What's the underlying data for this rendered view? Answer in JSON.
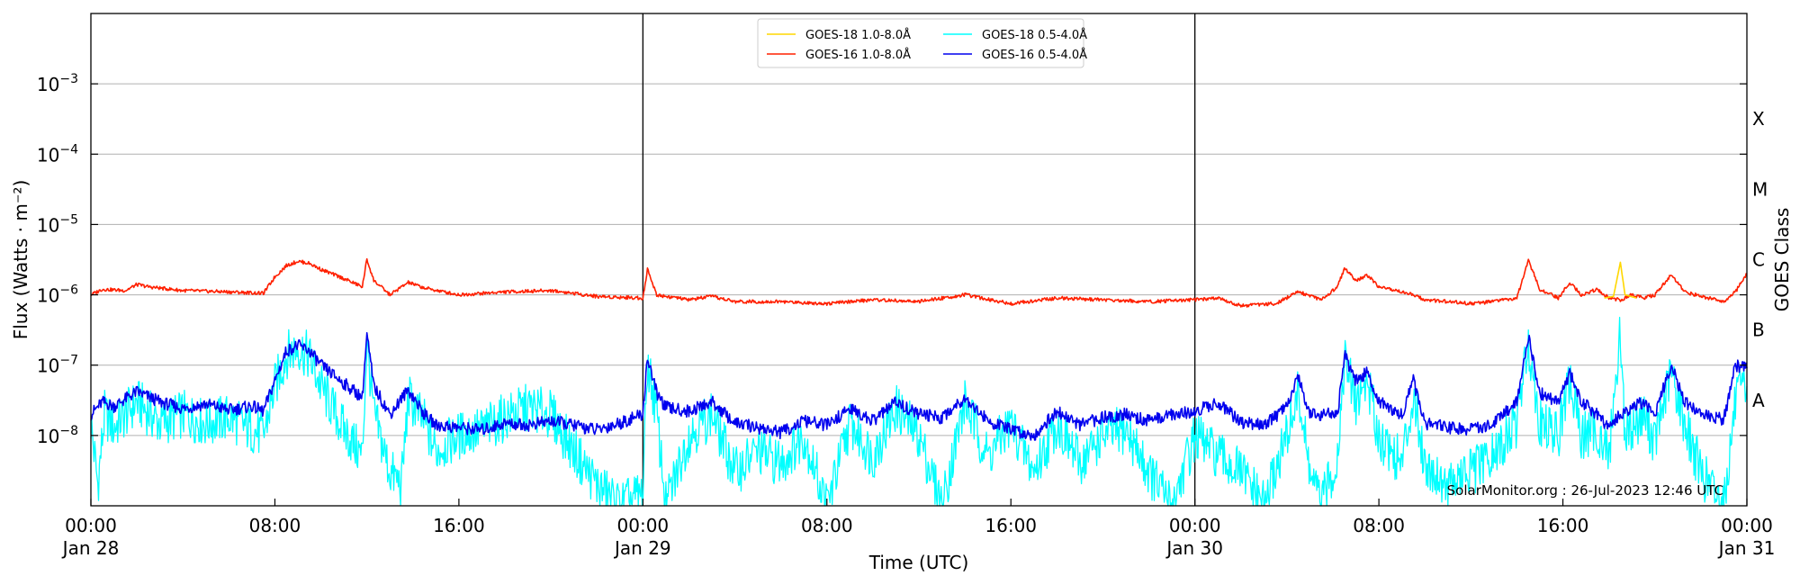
{
  "chart_data": {
    "type": "line",
    "title": "",
    "xlabel": "Time (UTC)",
    "ylabel": "Flux (Watts · m⁻²)",
    "y2label": "GOES Class",
    "yscale": "log",
    "ylim_exp": [
      -9,
      -2
    ],
    "xlim_hours": [
      0,
      72
    ],
    "credit": "SolarMonitor.org : 26-Jul-2023 12:46 UTC",
    "y_ticks": [
      {
        "exp": -8,
        "label": "10"
      },
      {
        "exp": -7,
        "label": "10"
      },
      {
        "exp": -6,
        "label": "10"
      },
      {
        "exp": -5,
        "label": "10"
      },
      {
        "exp": -4,
        "label": "10"
      },
      {
        "exp": -3,
        "label": "10"
      }
    ],
    "class_labels": [
      {
        "exp": -7.5,
        "label": "A"
      },
      {
        "exp": -6.5,
        "label": "B"
      },
      {
        "exp": -5.5,
        "label": "C"
      },
      {
        "exp": -4.5,
        "label": "M"
      },
      {
        "exp": -3.5,
        "label": "X"
      }
    ],
    "x_ticks": [
      {
        "hour": 0,
        "time": "00:00",
        "date": "Jan 28"
      },
      {
        "hour": 8,
        "time": "08:00",
        "date": ""
      },
      {
        "hour": 16,
        "time": "16:00",
        "date": ""
      },
      {
        "hour": 24,
        "time": "00:00",
        "date": "Jan 29"
      },
      {
        "hour": 32,
        "time": "08:00",
        "date": ""
      },
      {
        "hour": 40,
        "time": "16:00",
        "date": ""
      },
      {
        "hour": 48,
        "time": "00:00",
        "date": "Jan 30"
      },
      {
        "hour": 56,
        "time": "08:00",
        "date": ""
      },
      {
        "hour": 64,
        "time": "16:00",
        "date": ""
      },
      {
        "hour": 72,
        "time": "00:00",
        "date": "Jan 31"
      }
    ],
    "day_dividers_hours": [
      24,
      48
    ],
    "legend": [
      {
        "name": "GOES-18 1.0-8.0Å",
        "color": "#ffd700"
      },
      {
        "name": "GOES-16 1.0-8.0Å",
        "color": "#ff2000"
      },
      {
        "name": "GOES-18 0.5-4.0Å",
        "color": "#00ffff"
      },
      {
        "name": "GOES-16 0.5-4.0Å",
        "color": "#0000ee"
      }
    ],
    "series": [
      {
        "name": "GOES-16 1.0-8.0Å",
        "color": "#ff2000",
        "points": [
          [
            0,
            1e-06
          ],
          [
            0.5,
            1.2e-06
          ],
          [
            1.5,
            1.15e-06
          ],
          [
            2,
            1.4e-06
          ],
          [
            2.5,
            1.3e-06
          ],
          [
            4,
            1.15e-06
          ],
          [
            6,
            1.1e-06
          ],
          [
            7.5,
            1.05e-06
          ],
          [
            8,
            1.8e-06
          ],
          [
            8.5,
            2.6e-06
          ],
          [
            9,
            3e-06
          ],
          [
            9.5,
            2.8e-06
          ],
          [
            10,
            2.3e-06
          ],
          [
            11,
            1.7e-06
          ],
          [
            11.8,
            1.3e-06
          ],
          [
            12,
            3.2e-06
          ],
          [
            12.3,
            1.6e-06
          ],
          [
            13,
            1e-06
          ],
          [
            13.8,
            1.5e-06
          ],
          [
            14.5,
            1.25e-06
          ],
          [
            16,
            1e-06
          ],
          [
            18,
            1.1e-06
          ],
          [
            20,
            1.15e-06
          ],
          [
            21,
            1.05e-06
          ],
          [
            22,
            9.5e-07
          ],
          [
            24,
            9e-07
          ],
          [
            24.2,
            2.3e-06
          ],
          [
            24.6,
            1e-06
          ],
          [
            26,
            8.5e-07
          ],
          [
            27,
            9.5e-07
          ],
          [
            28,
            8e-07
          ],
          [
            30,
            8e-07
          ],
          [
            32,
            7.5e-07
          ],
          [
            34,
            8.5e-07
          ],
          [
            36,
            8e-07
          ],
          [
            38,
            1e-06
          ],
          [
            40,
            7.5e-07
          ],
          [
            42,
            9e-07
          ],
          [
            44,
            8.5e-07
          ],
          [
            46,
            8e-07
          ],
          [
            48,
            8.5e-07
          ],
          [
            49,
            9e-07
          ],
          [
            50,
            7e-07
          ],
          [
            51.5,
            7.5e-07
          ],
          [
            52.5,
            1.1e-06
          ],
          [
            53.5,
            8.5e-07
          ],
          [
            54.2,
            1.3e-06
          ],
          [
            54.5,
            2.4e-06
          ],
          [
            55,
            1.6e-06
          ],
          [
            55.5,
            1.9e-06
          ],
          [
            56,
            1.3e-06
          ],
          [
            57,
            1.1e-06
          ],
          [
            57.5,
            1e-06
          ],
          [
            58,
            8.5e-07
          ],
          [
            59,
            8e-07
          ],
          [
            60,
            7.5e-07
          ],
          [
            61,
            8e-07
          ],
          [
            62,
            9e-07
          ],
          [
            62.5,
            3.1e-06
          ],
          [
            63,
            1.2e-06
          ],
          [
            63.8,
            9e-07
          ],
          [
            64.3,
            1.5e-06
          ],
          [
            64.8,
            1e-06
          ],
          [
            65.5,
            1.2e-06
          ],
          [
            66,
            9e-07
          ],
          [
            66.5,
            8.5e-07
          ],
          [
            67,
            1e-06
          ],
          [
            67.5,
            9e-07
          ],
          [
            68,
            1e-06
          ],
          [
            68.7,
            1.9e-06
          ],
          [
            69.3,
            1.1e-06
          ],
          [
            70,
            9.5e-07
          ],
          [
            71,
            8e-07
          ],
          [
            71.5,
            1.1e-06
          ],
          [
            72,
            2e-06
          ]
        ]
      },
      {
        "name": "GOES-18 1.0-8.0Å",
        "color": "#ffd700",
        "points": [
          [
            65.8,
            9e-07
          ],
          [
            66.2,
            9.5e-07
          ],
          [
            66.5,
            2.9e-06
          ],
          [
            66.7,
            1e-06
          ],
          [
            67.2,
            9e-07
          ]
        ]
      },
      {
        "name": "GOES-16 0.5-4.0Å",
        "color": "#0000ee",
        "points": [
          [
            0,
            2e-08
          ],
          [
            0.5,
            3e-08
          ],
          [
            1,
            2.6e-08
          ],
          [
            2,
            4.2e-08
          ],
          [
            3,
            3e-08
          ],
          [
            4,
            2.4e-08
          ],
          [
            5,
            2.8e-08
          ],
          [
            6,
            2.3e-08
          ],
          [
            7,
            2.6e-08
          ],
          [
            7.5,
            2.2e-08
          ],
          [
            8,
            6e-08
          ],
          [
            8.5,
            1.6e-07
          ],
          [
            9,
            1.9e-07
          ],
          [
            9.5,
            1.6e-07
          ],
          [
            10,
            1e-07
          ],
          [
            11,
            5.5e-08
          ],
          [
            11.8,
            3.5e-08
          ],
          [
            12,
            2.7e-07
          ],
          [
            12.3,
            5e-08
          ],
          [
            13,
            2e-08
          ],
          [
            13.8,
            4.5e-08
          ],
          [
            14.5,
            2e-08
          ],
          [
            15,
            1.4e-08
          ],
          [
            17,
            1.2e-08
          ],
          [
            18,
            1.5e-08
          ],
          [
            19,
            1.4e-08
          ],
          [
            20,
            1.6e-08
          ],
          [
            21,
            1.4e-08
          ],
          [
            22,
            1.2e-08
          ],
          [
            23,
            1.5e-08
          ],
          [
            24,
            2e-08
          ],
          [
            24.2,
            1.3e-07
          ],
          [
            24.6,
            4e-08
          ],
          [
            25,
            2.5e-08
          ],
          [
            26,
            2.2e-08
          ],
          [
            27,
            3e-08
          ],
          [
            28,
            1.5e-08
          ],
          [
            29,
            1.3e-08
          ],
          [
            30,
            1.1e-08
          ],
          [
            31,
            1.6e-08
          ],
          [
            32,
            1.4e-08
          ],
          [
            33,
            2.4e-08
          ],
          [
            34,
            1.6e-08
          ],
          [
            35,
            3e-08
          ],
          [
            36,
            2e-08
          ],
          [
            37,
            1.8e-08
          ],
          [
            38,
            3.5e-08
          ],
          [
            39,
            1.6e-08
          ],
          [
            40,
            1.2e-08
          ],
          [
            41,
            1e-08
          ],
          [
            42,
            2.2e-08
          ],
          [
            43,
            1.4e-08
          ],
          [
            44,
            1.8e-08
          ],
          [
            45,
            2e-08
          ],
          [
            46,
            1.6e-08
          ],
          [
            47,
            2e-08
          ],
          [
            48,
            2.2e-08
          ],
          [
            49,
            3e-08
          ],
          [
            50,
            1.5e-08
          ],
          [
            51,
            1.4e-08
          ],
          [
            52,
            2.5e-08
          ],
          [
            52.5,
            7e-08
          ],
          [
            53,
            2e-08
          ],
          [
            53.5,
            2e-08
          ],
          [
            54.2,
            2e-08
          ],
          [
            54.5,
            1.4e-07
          ],
          [
            55,
            6e-08
          ],
          [
            55.5,
            8e-08
          ],
          [
            56,
            3e-08
          ],
          [
            57,
            2e-08
          ],
          [
            57.5,
            6e-08
          ],
          [
            58,
            1.5e-08
          ],
          [
            59,
            1.3e-08
          ],
          [
            60,
            1.2e-08
          ],
          [
            61,
            1.5e-08
          ],
          [
            62,
            3e-08
          ],
          [
            62.5,
            2.6e-07
          ],
          [
            63,
            4e-08
          ],
          [
            63.8,
            3e-08
          ],
          [
            64.3,
            8e-08
          ],
          [
            64.8,
            3e-08
          ],
          [
            65.5,
            2e-08
          ],
          [
            66,
            1.3e-08
          ],
          [
            66.5,
            2e-08
          ],
          [
            67,
            2.5e-08
          ],
          [
            67.5,
            3e-08
          ],
          [
            68,
            2e-08
          ],
          [
            68.7,
            1e-07
          ],
          [
            69.3,
            3e-08
          ],
          [
            70,
            2e-08
          ],
          [
            71,
            1.7e-08
          ],
          [
            71.5,
            1e-07
          ],
          [
            72,
            9e-08
          ]
        ]
      },
      {
        "name": "GOES-18 0.5-4.0Å",
        "color": "#00ffff",
        "points": [
          [
            0,
            1.5e-08
          ],
          [
            0.3,
            2e-09
          ],
          [
            0.6,
            2e-08
          ],
          [
            1,
            1.3e-08
          ],
          [
            2,
            3e-08
          ],
          [
            3,
            1.5e-08
          ],
          [
            4,
            2e-08
          ],
          [
            5,
            1.5e-08
          ],
          [
            6,
            1.8e-08
          ],
          [
            7,
            1.2e-08
          ],
          [
            7.5,
            1e-08
          ],
          [
            8,
            5e-08
          ],
          [
            8.5,
            1.4e-07
          ],
          [
            9,
            1.8e-07
          ],
          [
            9.5,
            1.3e-07
          ],
          [
            10,
            5e-08
          ],
          [
            11,
            1.2e-08
          ],
          [
            11.8,
            5e-09
          ],
          [
            12,
            2.2e-07
          ],
          [
            12.3,
            2e-08
          ],
          [
            13,
            3e-09
          ],
          [
            13.5,
            2e-09
          ],
          [
            13.8,
            3.5e-08
          ],
          [
            14.5,
            1.5e-08
          ],
          [
            15,
            6e-09
          ],
          [
            16,
            1e-08
          ],
          [
            17,
            1.2e-08
          ],
          [
            18,
            1.8e-08
          ],
          [
            19,
            2.5e-08
          ],
          [
            20,
            2e-08
          ],
          [
            21,
            6e-09
          ],
          [
            22,
            2e-09
          ],
          [
            23,
            1e-09
          ],
          [
            24,
            1.5e-09
          ],
          [
            24.2,
            1.1e-07
          ],
          [
            24.6,
            2e-08
          ],
          [
            25,
            1e-09
          ],
          [
            26,
            1e-08
          ],
          [
            27,
            2e-08
          ],
          [
            28,
            3e-09
          ],
          [
            29,
            6e-09
          ],
          [
            30,
            4e-09
          ],
          [
            31,
            1e-08
          ],
          [
            32,
            1e-09
          ],
          [
            33,
            1.5e-08
          ],
          [
            34,
            5e-09
          ],
          [
            35,
            2.5e-08
          ],
          [
            36,
            1e-08
          ],
          [
            37,
            1e-09
          ],
          [
            38,
            3e-08
          ],
          [
            39,
            5e-09
          ],
          [
            40,
            1.5e-08
          ],
          [
            41,
            3e-09
          ],
          [
            42,
            1.5e-08
          ],
          [
            43,
            4e-09
          ],
          [
            44,
            1e-08
          ],
          [
            45,
            1.2e-08
          ],
          [
            46,
            3e-09
          ],
          [
            47,
            1e-09
          ],
          [
            48,
            1e-08
          ],
          [
            49,
            5e-09
          ],
          [
            50,
            3e-09
          ],
          [
            51,
            1e-09
          ],
          [
            52,
            1e-08
          ],
          [
            52.5,
            4e-08
          ],
          [
            53,
            3e-09
          ],
          [
            53.5,
            1e-09
          ],
          [
            54.2,
            5e-09
          ],
          [
            54.5,
            1.2e-07
          ],
          [
            55,
            3e-08
          ],
          [
            55.5,
            6e-08
          ],
          [
            56,
            1e-08
          ],
          [
            57,
            4e-09
          ],
          [
            57.5,
            4e-08
          ],
          [
            58,
            4e-09
          ],
          [
            59,
            2e-09
          ],
          [
            60,
            3e-09
          ],
          [
            61,
            5e-09
          ],
          [
            62,
            1.5e-08
          ],
          [
            62.5,
            2.2e-07
          ],
          [
            63,
            1.5e-08
          ],
          [
            63.8,
            1e-08
          ],
          [
            64.3,
            6e-08
          ],
          [
            64.8,
            1e-08
          ],
          [
            65.5,
            1.2e-08
          ],
          [
            66,
            5e-09
          ],
          [
            66.5,
            3.2e-07
          ],
          [
            66.7,
            1e-08
          ],
          [
            67,
            1.3e-08
          ],
          [
            67.5,
            2e-08
          ],
          [
            68,
            8e-09
          ],
          [
            68.7,
            8e-08
          ],
          [
            69.3,
            1.5e-08
          ],
          [
            70,
            3e-09
          ],
          [
            71,
            1e-09
          ],
          [
            71.5,
            3e-08
          ],
          [
            72,
            5e-08
          ]
        ]
      }
    ]
  }
}
